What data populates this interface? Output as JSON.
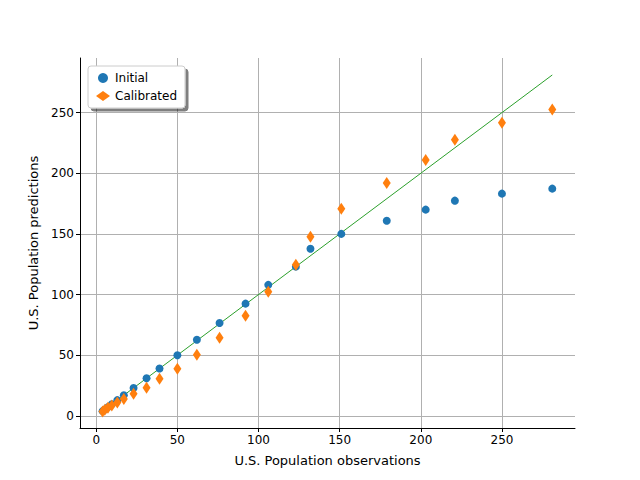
{
  "chart_data": {
    "type": "scatter",
    "xlabel": "U.S. Population observations",
    "ylabel": "U.S. Population predictions",
    "xlim": [
      -10,
      295
    ],
    "xticks": [
      0,
      50,
      100,
      150,
      200,
      250
    ],
    "ylim": [
      -10,
      295
    ],
    "yticks": [
      0,
      50,
      100,
      150,
      200,
      250
    ],
    "grid": true,
    "legend": "upper left",
    "series": [
      {
        "name": "Initial",
        "type": "scatter",
        "marker": "circle",
        "color": "#1f77b4",
        "x": [
          3.9,
          5.3,
          7.2,
          9.6,
          13,
          17,
          23,
          31,
          39,
          50,
          62,
          76,
          92,
          106,
          123,
          132,
          151,
          179,
          203,
          221,
          250,
          281
        ],
        "values": [
          3.9,
          5.3,
          7.2,
          9.6,
          13,
          17,
          23,
          31,
          39,
          50,
          62.7,
          76.5,
          92.5,
          108,
          123,
          137.8,
          150,
          160.9,
          170,
          177.4,
          183.2,
          187.3
        ]
      },
      {
        "name": "Calibrated",
        "type": "scatter",
        "marker": "thin_diamond",
        "color": "#ff7f0e",
        "x": [
          3.9,
          5.3,
          7.2,
          9.6,
          13,
          17,
          23,
          31,
          39,
          50,
          62,
          76,
          92,
          106,
          123,
          132,
          151,
          179,
          203,
          221,
          250,
          281
        ],
        "values": [
          3.7,
          5,
          6.7,
          8.5,
          11,
          14,
          18.2,
          23.1,
          30.5,
          38.8,
          50.3,
          64.4,
          82.5,
          102.3,
          124.6,
          147.7,
          170.8,
          192,
          211,
          227.7,
          241.7,
          252.5
        ]
      },
      {
        "type": "line",
        "line_style": "solid",
        "color": "#2ca02c",
        "x": [
          3.9,
          281
        ],
        "values": [
          3.9,
          281
        ]
      }
    ]
  }
}
